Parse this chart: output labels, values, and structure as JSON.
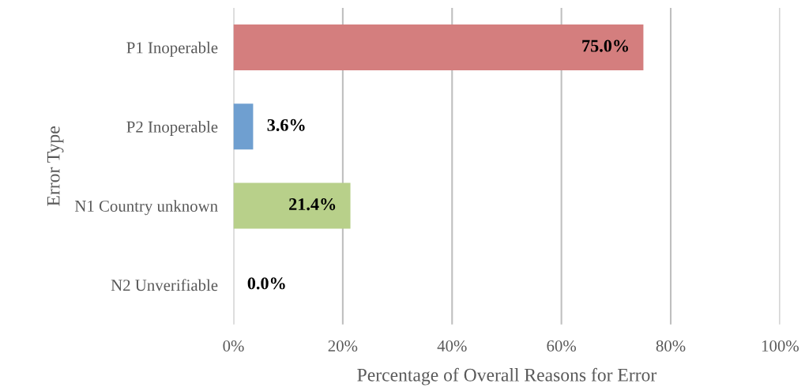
{
  "chart_data": {
    "type": "bar",
    "orientation": "horizontal",
    "categories": [
      "P1 Inoperable",
      "P2 Inoperable",
      "N1 Country unknown",
      "N2 Unverifiable"
    ],
    "values": [
      75.0,
      3.6,
      21.4,
      0.0
    ],
    "colors": [
      "#d47e7e",
      "#6f9fd0",
      "#b8d08a",
      "#c9a0c0"
    ],
    "value_labels": [
      "75.0%",
      "3.6%",
      "21.4%",
      "0.0%"
    ],
    "xlim": [
      0,
      100
    ],
    "xticks": [
      {
        "value": 0,
        "label": "0%"
      },
      {
        "value": 20,
        "label": "20%"
      },
      {
        "value": 40,
        "label": "40%"
      },
      {
        "value": 60,
        "label": "60%"
      },
      {
        "value": 80,
        "label": "80%"
      },
      {
        "value": 100,
        "label": "100%"
      }
    ],
    "xlabel": "Percentage of Overall Reasons for Error",
    "ylabel": "Error Type",
    "grid": "x"
  }
}
